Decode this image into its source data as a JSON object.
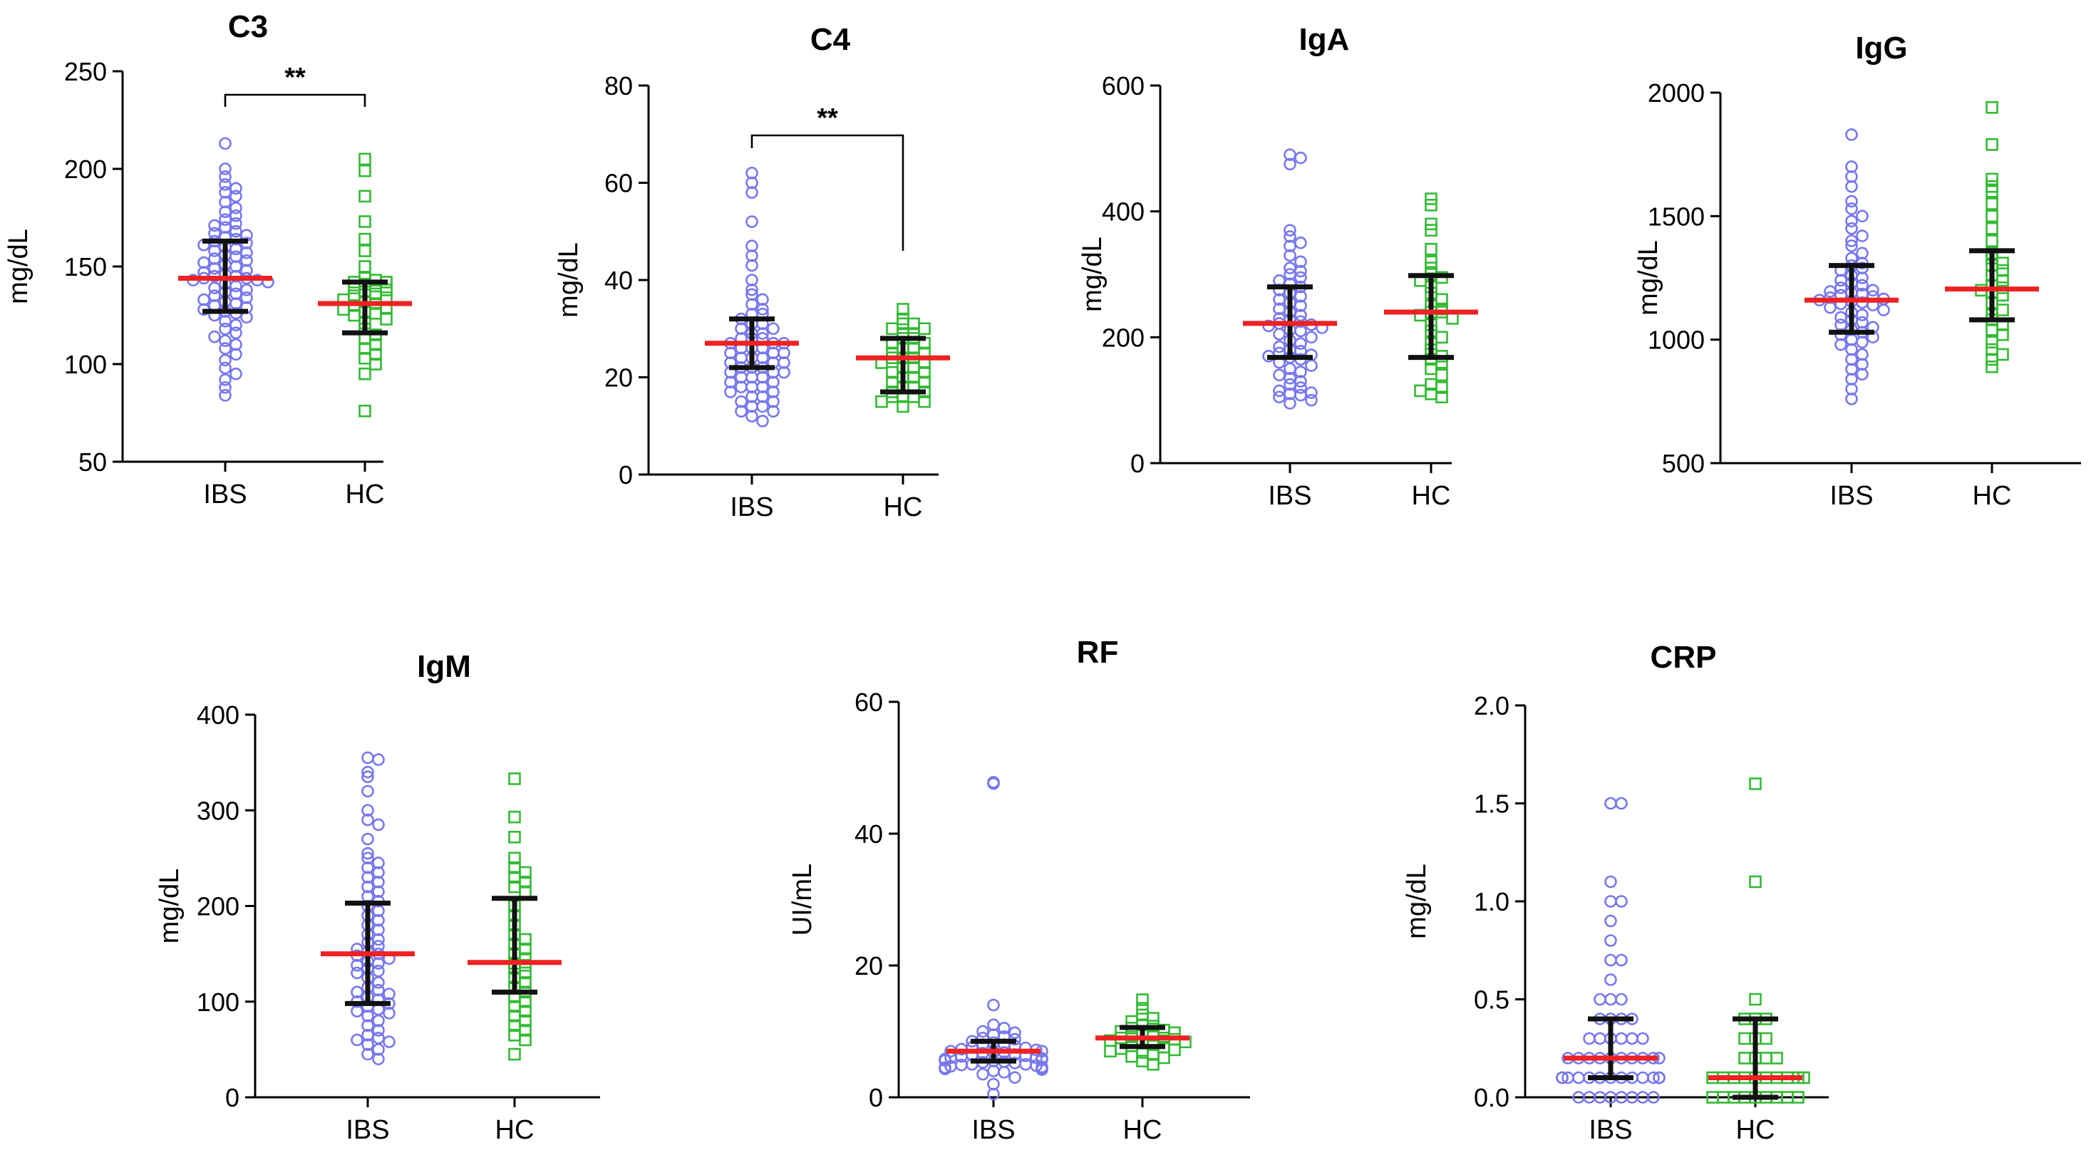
{
  "figure": {
    "ibs_color": "#7777ee",
    "hc_color": "#33bb33",
    "median_color": "#ee2222",
    "bar_color": "#111111"
  },
  "chart_data": [
    {
      "title": "C3",
      "type": "scatter",
      "ylabel": "mg/dL",
      "ylim": [
        50,
        250
      ],
      "yticks": [
        "50",
        "100",
        "150",
        "200",
        "250"
      ],
      "categories": [
        "IBS",
        "HC"
      ],
      "significance": "**",
      "series": [
        {
          "name": "IBS",
          "median": 144,
          "q1": 127,
          "q3": 163,
          "values": [
            213,
            200,
            196,
            192,
            190,
            188,
            186,
            183,
            180,
            178,
            176,
            174,
            172,
            171,
            170,
            168,
            167,
            166,
            165,
            164,
            163,
            162,
            161,
            160,
            159,
            158,
            157,
            156,
            155,
            154,
            153,
            152,
            151,
            150,
            149,
            148,
            147,
            146,
            145,
            145,
            144,
            144,
            143,
            143,
            142,
            141,
            140,
            139,
            138,
            137,
            136,
            135,
            134,
            133,
            132,
            131,
            130,
            129,
            128,
            127,
            126,
            125,
            124,
            122,
            120,
            118,
            116,
            114,
            112,
            110,
            108,
            105,
            102,
            98,
            95,
            92,
            88,
            84
          ]
        },
        {
          "name": "HC",
          "median": 131,
          "q1": 116,
          "q3": 142,
          "values": [
            205,
            199,
            186,
            173,
            164,
            158,
            150,
            144,
            143,
            142,
            142,
            141,
            140,
            139,
            138,
            137,
            136,
            135,
            134,
            133,
            132,
            131,
            130,
            129,
            128,
            127,
            126,
            125,
            123,
            121,
            118,
            115,
            113,
            110,
            108,
            105,
            103,
            100,
            95,
            76
          ]
        }
      ]
    },
    {
      "title": "C4",
      "type": "scatter",
      "ylabel": "mg/dL",
      "ylim": [
        0,
        80
      ],
      "yticks": [
        "0",
        "20",
        "40",
        "60",
        "80"
      ],
      "categories": [
        "IBS",
        "HC"
      ],
      "significance": "**",
      "series": [
        {
          "name": "IBS",
          "median": 27,
          "q1": 22,
          "q3": 32,
          "values": [
            62,
            60,
            58,
            52,
            47,
            45,
            43,
            40,
            38,
            37,
            36,
            35,
            34,
            33,
            33,
            32,
            31,
            31,
            30,
            30,
            29,
            29,
            28,
            28,
            28,
            27,
            27,
            27,
            26,
            26,
            26,
            25,
            25,
            25,
            24,
            24,
            24,
            23,
            23,
            23,
            22,
            22,
            22,
            21,
            21,
            21,
            20,
            20,
            20,
            19,
            19,
            18,
            18,
            18,
            17,
            17,
            16,
            16,
            15,
            15,
            14,
            14,
            13,
            13,
            12,
            11
          ]
        },
        {
          "name": "HC",
          "median": 24,
          "q1": 17,
          "q3": 28,
          "values": [
            34,
            32,
            31,
            31,
            30,
            30,
            29,
            29,
            28,
            28,
            27,
            27,
            26,
            26,
            25,
            25,
            24,
            24,
            24,
            23,
            23,
            22,
            22,
            21,
            21,
            20,
            20,
            19,
            19,
            18,
            18,
            17,
            17,
            16,
            16,
            16,
            15,
            15,
            14
          ]
        }
      ]
    },
    {
      "title": "IgA",
      "type": "scatter",
      "ylabel": "mg/dL",
      "ylim": [
        0,
        600
      ],
      "yticks": [
        "0",
        "200",
        "400",
        "600"
      ],
      "categories": [
        "IBS",
        "HC"
      ],
      "significance": "",
      "series": [
        {
          "name": "IBS",
          "median": 222,
          "q1": 168,
          "q3": 280,
          "values": [
            490,
            485,
            475,
            370,
            360,
            350,
            345,
            330,
            320,
            310,
            305,
            300,
            295,
            290,
            285,
            280,
            275,
            270,
            265,
            260,
            255,
            250,
            245,
            240,
            235,
            230,
            228,
            225,
            222,
            220,
            218,
            215,
            212,
            210,
            205,
            200,
            195,
            190,
            185,
            180,
            178,
            175,
            172,
            170,
            168,
            165,
            160,
            155,
            150,
            145,
            140,
            135,
            130,
            125,
            120,
            115,
            112,
            110,
            108,
            105,
            100,
            95
          ]
        },
        {
          "name": "HC",
          "median": 240,
          "q1": 168,
          "q3": 298,
          "values": [
            420,
            410,
            380,
            370,
            340,
            320,
            310,
            300,
            295,
            290,
            280,
            270,
            260,
            250,
            245,
            240,
            240,
            235,
            230,
            220,
            210,
            200,
            190,
            180,
            170,
            165,
            160,
            150,
            140,
            125,
            120,
            115,
            110,
            105
          ]
        }
      ]
    },
    {
      "title": "IgG",
      "type": "scatter",
      "ylabel": "mg/dL",
      "ylim": [
        500,
        2000
      ],
      "yticks": [
        "500",
        "1000",
        "1500",
        "2000"
      ],
      "categories": [
        "IBS",
        "HC"
      ],
      "significance": "",
      "series": [
        {
          "name": "IBS",
          "median": 1160,
          "q1": 1030,
          "q3": 1300,
          "values": [
            1830,
            1700,
            1660,
            1620,
            1560,
            1530,
            1500,
            1480,
            1450,
            1420,
            1400,
            1380,
            1350,
            1330,
            1310,
            1300,
            1290,
            1280,
            1260,
            1250,
            1240,
            1230,
            1220,
            1210,
            1200,
            1195,
            1190,
            1185,
            1180,
            1175,
            1170,
            1165,
            1160,
            1155,
            1150,
            1145,
            1140,
            1130,
            1120,
            1110,
            1100,
            1090,
            1080,
            1070,
            1060,
            1050,
            1040,
            1030,
            1020,
            1010,
            1000,
            990,
            980,
            960,
            940,
            920,
            900,
            880,
            860,
            840,
            800,
            760
          ]
        },
        {
          "name": "HC",
          "median": 1205,
          "q1": 1080,
          "q3": 1360,
          "values": [
            1940,
            1790,
            1650,
            1620,
            1600,
            1550,
            1500,
            1450,
            1400,
            1350,
            1330,
            1310,
            1300,
            1280,
            1260,
            1240,
            1220,
            1210,
            1200,
            1190,
            1180,
            1150,
            1120,
            1100,
            1080,
            1060,
            1040,
            1020,
            990,
            960,
            940,
            920,
            890
          ]
        }
      ]
    },
    {
      "title": "IgM",
      "type": "scatter",
      "ylabel": "mg/dL",
      "ylim": [
        0,
        400
      ],
      "yticks": [
        "0",
        "100",
        "200",
        "300",
        "400"
      ],
      "categories": [
        "IBS",
        "HC"
      ],
      "significance": "",
      "series": [
        {
          "name": "IBS",
          "median": 150,
          "q1": 98,
          "q3": 203,
          "values": [
            355,
            353,
            340,
            335,
            320,
            300,
            290,
            285,
            270,
            255,
            250,
            245,
            240,
            235,
            230,
            225,
            220,
            215,
            210,
            205,
            200,
            195,
            190,
            185,
            180,
            175,
            170,
            165,
            162,
            158,
            155,
            152,
            150,
            148,
            145,
            142,
            140,
            138,
            135,
            132,
            130,
            125,
            120,
            115,
            112,
            110,
            108,
            105,
            102,
            100,
            98,
            95,
            92,
            90,
            88,
            85,
            80,
            75,
            70,
            65,
            62,
            60,
            58,
            55,
            50,
            45,
            40
          ]
        },
        {
          "name": "HC",
          "median": 141,
          "q1": 110,
          "q3": 208,
          "values": [
            333,
            293,
            272,
            250,
            240,
            235,
            230,
            225,
            220,
            215,
            200,
            190,
            180,
            170,
            165,
            160,
            155,
            150,
            145,
            140,
            138,
            135,
            130,
            125,
            120,
            115,
            110,
            105,
            100,
            95,
            90,
            85,
            80,
            75,
            70,
            65,
            60,
            45
          ]
        }
      ]
    },
    {
      "title": "RF",
      "type": "scatter",
      "ylabel": "UI/mL",
      "ylim": [
        0,
        60
      ],
      "yticks": [
        "0",
        "20",
        "40",
        "60"
      ],
      "categories": [
        "IBS",
        "HC"
      ],
      "significance": "",
      "series": [
        {
          "name": "IBS",
          "median": 7,
          "q1": 5.5,
          "q3": 8.5,
          "values": [
            47.8,
            47.6,
            14,
            11,
            10.5,
            10,
            9.8,
            9.5,
            9.2,
            9,
            8.8,
            8.5,
            8.3,
            8,
            8,
            7.8,
            7.6,
            7.5,
            7.3,
            7.2,
            7,
            7,
            6.9,
            6.8,
            6.7,
            6.5,
            6.4,
            6.3,
            6.2,
            6,
            6,
            5.9,
            5.8,
            5.7,
            5.6,
            5.5,
            5.4,
            5.3,
            5.2,
            5,
            5,
            4.9,
            4.8,
            4.7,
            4.6,
            4.5,
            4.4,
            4.3,
            4.2,
            4,
            3.8,
            3.5,
            3,
            2,
            0.5
          ]
        },
        {
          "name": "HC",
          "median": 9,
          "q1": 7.7,
          "q3": 10.6,
          "values": [
            14.8,
            13.5,
            12.5,
            12,
            11.5,
            11,
            10.8,
            10.5,
            10.2,
            10,
            9.8,
            9.6,
            9.4,
            9.2,
            9,
            9,
            8.8,
            8.6,
            8.4,
            8.2,
            8,
            7.8,
            7.6,
            7.4,
            7.2,
            7,
            6.8,
            6.5,
            6.2,
            6,
            5.5,
            5
          ]
        }
      ]
    },
    {
      "title": "CRP",
      "type": "scatter",
      "ylabel": "mg/dL",
      "ylim": [
        0.0,
        2.0
      ],
      "yticks": [
        "0.0",
        "0.5",
        "1.0",
        "1.5",
        "2.0"
      ],
      "categories": [
        "IBS",
        "HC"
      ],
      "significance": "",
      "series": [
        {
          "name": "IBS",
          "median": 0.2,
          "q1": 0.1,
          "q3": 0.4,
          "values": [
            1.5,
            1.5,
            1.1,
            1.0,
            1.0,
            0.9,
            0.8,
            0.7,
            0.7,
            0.6,
            0.5,
            0.5,
            0.5,
            0.4,
            0.4,
            0.4,
            0.4,
            0.3,
            0.3,
            0.3,
            0.3,
            0.3,
            0.3,
            0.2,
            0.2,
            0.2,
            0.2,
            0.2,
            0.2,
            0.2,
            0.2,
            0.2,
            0.2,
            0.1,
            0.1,
            0.1,
            0.1,
            0.1,
            0.1,
            0.1,
            0.1,
            0.1,
            0.1,
            0.1,
            0.1,
            0.1,
            0.1,
            0.1,
            0.0,
            0.0,
            0.0,
            0.0,
            0.0,
            0.0,
            0.0,
            0.0
          ]
        },
        {
          "name": "HC",
          "median": 0.1,
          "q1": 0.0,
          "q3": 0.4,
          "values": [
            1.6,
            1.1,
            0.5,
            0.4,
            0.4,
            0.4,
            0.3,
            0.3,
            0.3,
            0.2,
            0.2,
            0.2,
            0.2,
            0.1,
            0.1,
            0.1,
            0.1,
            0.1,
            0.1,
            0.1,
            0.1,
            0.1,
            0.1,
            0.0,
            0.0,
            0.0,
            0.0,
            0.0,
            0.0,
            0.0,
            0.0,
            0.0
          ]
        }
      ]
    }
  ]
}
